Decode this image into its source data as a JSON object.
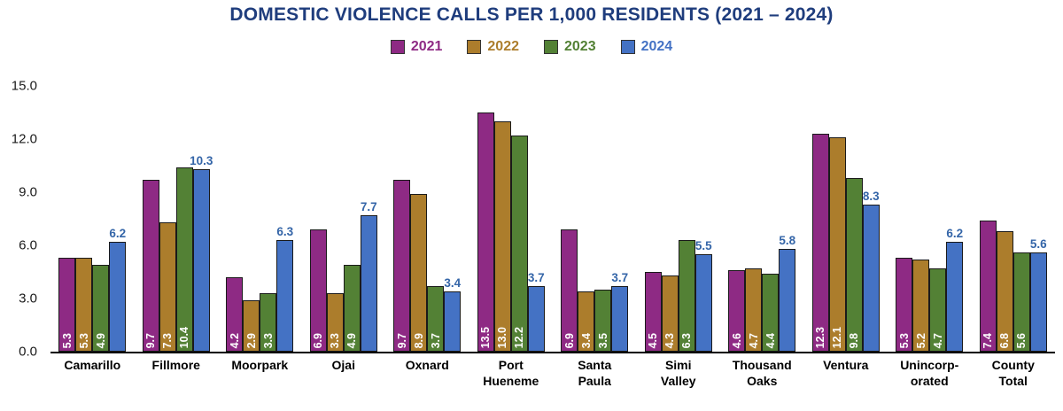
{
  "chart_data": {
    "type": "bar",
    "title": "DOMESTIC VIOLENCE CALLS PER 1,000 RESIDENTS (2021 – 2024)",
    "title_color": "#1f3d7d",
    "xlabel": "",
    "ylabel": "",
    "ylim": [
      0,
      15
    ],
    "yticks": [
      "15.0",
      "12.0",
      "9.0",
      "6.0",
      "3.0",
      "0.0"
    ],
    "grid": false,
    "legend_position": "top",
    "above_label_color": "#3465a8",
    "categories": [
      "Camarillo",
      "Fillmore",
      "Moorpark",
      "Ojai",
      "Oxnard",
      "Port Hueneme",
      "Santa Paula",
      "Simi Valley",
      "Thousand Oaks",
      "Ventura",
      "Unincorporated",
      "County Total"
    ],
    "category_labels": [
      "Camarillo",
      "Fillmore",
      "Moorpark",
      "Ojai",
      "Oxnard",
      "Port\nHueneme",
      "Santa\nPaula",
      "Simi\nValley",
      "Thousand\nOaks",
      "Ventura",
      "Unincorp-\norated",
      "County\nTotal"
    ],
    "series": [
      {
        "name": "2021",
        "color": "#8e2a84",
        "label_position": "inside",
        "values": [
          5.3,
          9.7,
          4.2,
          6.9,
          9.7,
          13.5,
          6.9,
          4.5,
          4.6,
          12.3,
          5.3,
          7.4
        ]
      },
      {
        "name": "2022",
        "color": "#ac7d2c",
        "label_position": "inside",
        "values": [
          5.3,
          7.3,
          2.9,
          3.3,
          8.9,
          13.0,
          3.4,
          4.3,
          4.7,
          12.1,
          5.2,
          6.8
        ]
      },
      {
        "name": "2023",
        "color": "#538135",
        "label_position": "inside",
        "values": [
          4.9,
          10.4,
          3.3,
          4.9,
          3.7,
          12.2,
          3.5,
          6.3,
          4.4,
          9.8,
          4.7,
          5.6
        ]
      },
      {
        "name": "2024",
        "color": "#4472c4",
        "label_position": "above",
        "values": [
          6.2,
          10.3,
          6.3,
          7.7,
          3.4,
          3.7,
          3.7,
          5.5,
          5.8,
          8.3,
          6.2,
          5.6
        ]
      }
    ]
  }
}
